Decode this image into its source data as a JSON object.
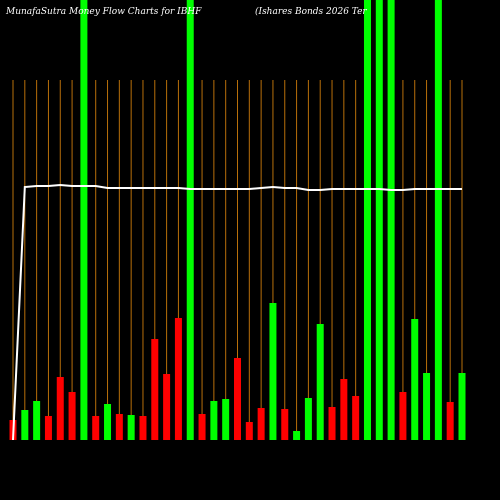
{
  "chart_data": {
    "type": "bar",
    "title": "MunafaSutra  Money Flow  Charts for IBHF",
    "subtitle": "(Ishares Bonds 2026  Ter",
    "categories": [
      null,
      null,
      null,
      null,
      null,
      null,
      null,
      null,
      null,
      null,
      null,
      null,
      null,
      null,
      null,
      null,
      null,
      null,
      null,
      null,
      null,
      null,
      null,
      null,
      null,
      null,
      null,
      null,
      null,
      null,
      null,
      null,
      null,
      null,
      null,
      null,
      null,
      null,
      null
    ],
    "series": [
      {
        "type": "bar",
        "values": [
          20,
          30,
          39,
          24,
          63,
          48,
          440,
          24,
          36,
          26,
          25,
          24,
          101,
          66,
          122,
          440,
          26,
          39,
          41,
          82,
          18,
          32,
          137,
          31,
          9,
          42,
          116,
          33,
          61,
          44,
          440,
          440,
          440,
          48,
          121,
          67,
          440,
          38,
          67
        ],
        "colors": [
          "#ff0000",
          "#00ff00",
          "#00ff00",
          "#ff0000",
          "#ff0000",
          "#ff0000",
          "#00ff00",
          "#ff0000",
          "#00ff00",
          "#ff0000",
          "#00ff00",
          "#ff0000",
          "#ff0000",
          "#ff0000",
          "#ff0000",
          "#00ff00",
          "#ff0000",
          "#00ff00",
          "#00ff00",
          "#ff0000",
          "#ff0000",
          "#ff0000",
          "#00ff00",
          "#ff0000",
          "#00ff00",
          "#00ff00",
          "#00ff00",
          "#ff0000",
          "#ff0000",
          "#ff0000",
          "#00ff00",
          "#00ff00",
          "#00ff00",
          "#ff0000",
          "#00ff00",
          "#00ff00",
          "#00ff00",
          "#ff0000",
          "#00ff00"
        ]
      },
      {
        "type": "line",
        "color": "#ffffff",
        "values": [
          0,
          253,
          254,
          254,
          255,
          254,
          254,
          254,
          252,
          252,
          252,
          252,
          252,
          252,
          252,
          251,
          251,
          251,
          251,
          251,
          251,
          252,
          253,
          252,
          252,
          250,
          250,
          251,
          251,
          251,
          251,
          251,
          250,
          250,
          251,
          251,
          251,
          251,
          251
        ]
      }
    ],
    "ylim": [
      0,
      440
    ],
    "grid": true,
    "grid_color": "#b86f0a",
    "background": "#000000"
  }
}
